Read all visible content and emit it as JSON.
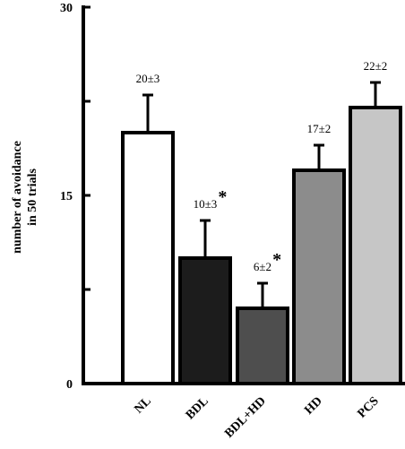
{
  "chart_data": {
    "type": "bar",
    "title": "",
    "ylabel_line1": "number of avoidance",
    "ylabel_line2": "in 50 trials",
    "ylim": [
      0,
      30
    ],
    "yticks": [
      "0",
      "15",
      "30"
    ],
    "categories": [
      "NL",
      "BDL",
      "BDL+HD",
      "HD",
      "PCS"
    ],
    "values": [
      20,
      10,
      6,
      17,
      22
    ],
    "errors": [
      3,
      3,
      2,
      2,
      2
    ],
    "value_labels": [
      "20±3",
      "10±3",
      "6±2",
      "17±2",
      "22±2"
    ],
    "significance": [
      "",
      "*",
      "*",
      "",
      ""
    ],
    "colors": [
      "#ffffff",
      "#1c1c1c",
      "#4e4e4e",
      "#8c8c8c",
      "#c6c6c6"
    ],
    "grid": false,
    "legend": "none"
  }
}
